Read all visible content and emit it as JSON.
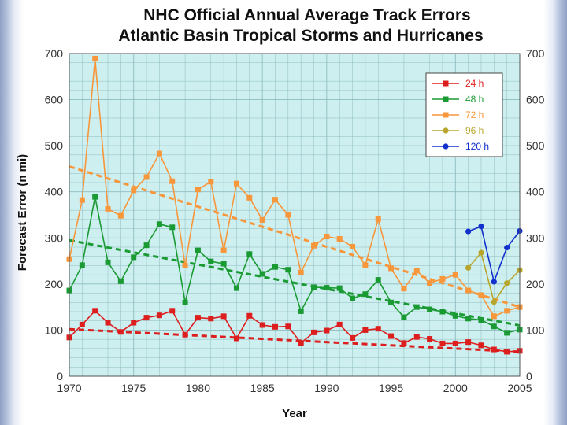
{
  "chart_data": {
    "type": "line",
    "title": "NHC Official Annual Average Track Errors",
    "subtitle": "Atlantic Basin Tropical Storms and Hurricanes",
    "xlabel": "Year",
    "ylabel": "Forecast Error (n mi)",
    "xlim": [
      1970,
      2005
    ],
    "ylim": [
      0,
      700
    ],
    "x_ticks": [
      1970,
      1975,
      1980,
      1985,
      1990,
      1995,
      2000,
      2005
    ],
    "y_ticks": [
      0,
      100,
      200,
      300,
      400,
      500,
      600,
      700
    ],
    "grid": true,
    "legend_position": "top-right",
    "background_color": "#cdeff0",
    "series": [
      {
        "name": "24 h",
        "color": "#dd1e1e",
        "marker": "square",
        "x": [
          1970,
          1971,
          1972,
          1973,
          1974,
          1975,
          1976,
          1977,
          1978,
          1979,
          1980,
          1981,
          1982,
          1983,
          1984,
          1985,
          1986,
          1987,
          1988,
          1989,
          1990,
          1991,
          1992,
          1993,
          1994,
          1995,
          1996,
          1997,
          1998,
          1999,
          2000,
          2001,
          2002,
          2003,
          2004,
          2005
        ],
        "values": [
          84,
          112,
          142,
          116,
          96,
          116,
          127,
          132,
          142,
          90,
          127,
          125,
          130,
          82,
          131,
          111,
          107,
          108,
          72,
          95,
          99,
          112,
          83,
          100,
          103,
          87,
          72,
          85,
          81,
          71,
          71,
          74,
          67,
          58,
          53,
          55
        ]
      },
      {
        "name": "48 h",
        "color": "#1a9a32",
        "marker": "square",
        "x": [
          1970,
          1971,
          1972,
          1973,
          1974,
          1975,
          1976,
          1977,
          1978,
          1979,
          1980,
          1981,
          1982,
          1983,
          1984,
          1985,
          1986,
          1987,
          1988,
          1989,
          1990,
          1991,
          1992,
          1993,
          1994,
          1995,
          1996,
          1997,
          1998,
          1999,
          2000,
          2001,
          2002,
          2003,
          2004,
          2005
        ],
        "values": [
          186,
          241,
          389,
          247,
          206,
          258,
          284,
          330,
          323,
          160,
          273,
          249,
          244,
          191,
          265,
          222,
          237,
          231,
          141,
          193,
          192,
          191,
          169,
          178,
          209,
          160,
          128,
          150,
          145,
          140,
          131,
          125,
          122,
          108,
          94,
          101
        ]
      },
      {
        "name": "72 h",
        "color": "#f7963a",
        "marker": "square",
        "x": [
          1970,
          1971,
          1972,
          1973,
          1974,
          1975,
          1976,
          1977,
          1978,
          1979,
          1980,
          1981,
          1982,
          1983,
          1984,
          1985,
          1986,
          1987,
          1988,
          1989,
          1990,
          1991,
          1992,
          1993,
          1994,
          1995,
          1996,
          1997,
          1998,
          1999,
          2000,
          2001,
          2002,
          2003,
          2004,
          2005
        ],
        "values": [
          254,
          382,
          689,
          363,
          348,
          403,
          432,
          483,
          423,
          240,
          405,
          422,
          273,
          418,
          387,
          339,
          383,
          350,
          225,
          283,
          303,
          298,
          281,
          241,
          341,
          234,
          190,
          229,
          202,
          211,
          220,
          186,
          176,
          130,
          142,
          150
        ]
      },
      {
        "name": "96 h",
        "color": "#b8a52c",
        "marker": "circle",
        "x": [
          2001,
          2002,
          2003,
          2004,
          2005
        ],
        "values": [
          235,
          268,
          161,
          202,
          230
        ]
      },
      {
        "name": "120 h",
        "color": "#1230cc",
        "marker": "circle",
        "x": [
          2001,
          2002,
          2003,
          2004,
          2005
        ],
        "values": [
          314,
          325,
          205,
          279,
          315
        ]
      }
    ],
    "trendlines": [
      {
        "series": "24 h",
        "x": [
          1970,
          2005
        ],
        "values": [
          102,
          53
        ]
      },
      {
        "series": "48 h",
        "x": [
          1970,
          2005
        ],
        "values": [
          295,
          110
        ]
      },
      {
        "series": "72 h",
        "x": [
          1970,
          2005
        ],
        "values": [
          455,
          150
        ]
      }
    ]
  }
}
